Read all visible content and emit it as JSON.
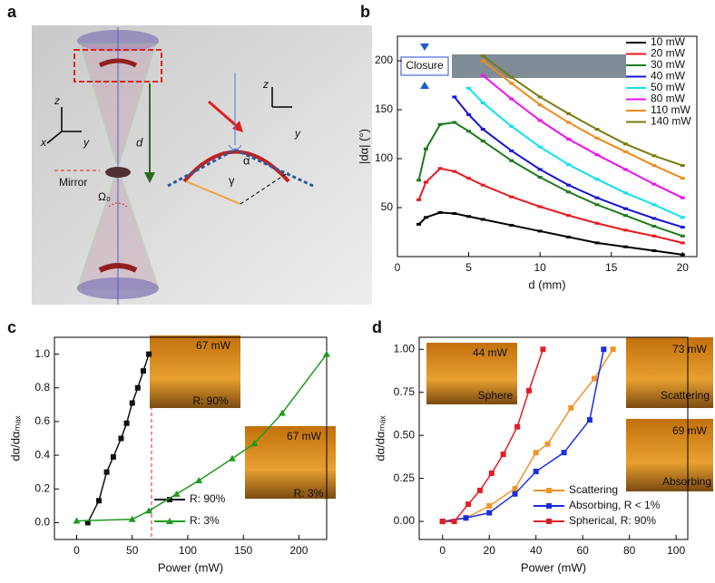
{
  "diagram": {
    "panel": "a",
    "labels": [
      "z",
      "x",
      "y",
      "d",
      "Mirror",
      "Ω₀",
      "z",
      "y",
      "α",
      "γ"
    ]
  },
  "chart_data": [
    {
      "panel": "b",
      "type": "line",
      "xlabel": "d (mm)",
      "ylabel": "|dα| (°)",
      "xlim": [
        0,
        21
      ],
      "ylim": [
        0,
        225
      ],
      "xticks": [
        0,
        5,
        10,
        15,
        20
      ],
      "yticks": [
        50,
        100,
        150,
        200
      ],
      "legend": "upper right",
      "marker": "tick",
      "insets": [
        [
          "Closure"
        ]
      ],
      "series": [
        {
          "name": "10 mW",
          "color": "#000000",
          "x": [
            1.5,
            2,
            3,
            4,
            5,
            6,
            8,
            10,
            12,
            14,
            16,
            18,
            20
          ],
          "values": [
            33,
            40,
            45,
            44,
            41,
            38,
            32,
            26,
            20,
            14,
            10,
            6,
            2
          ]
        },
        {
          "name": "20 mW",
          "color": "#e8191c",
          "x": [
            1.5,
            2,
            3,
            4,
            5,
            6,
            8,
            10,
            12,
            14,
            16,
            18,
            20
          ],
          "values": [
            58,
            76,
            90,
            87,
            80,
            73,
            61,
            51,
            42,
            34,
            27,
            21,
            14
          ]
        },
        {
          "name": "30 mW",
          "color": "#1e7b1e",
          "x": [
            1.5,
            2,
            3,
            4,
            5,
            6,
            8,
            10,
            12,
            14,
            16,
            18,
            20
          ],
          "values": [
            78,
            110,
            135,
            137,
            128,
            118,
            98,
            81,
            66,
            53,
            42,
            31,
            21
          ]
        },
        {
          "name": "40 mW",
          "color": "#1515d8",
          "x": [
            4,
            5,
            6,
            8,
            10,
            12,
            14,
            16,
            18,
            20
          ],
          "values": [
            163,
            145,
            130,
            108,
            89,
            73,
            60,
            49,
            39,
            30
          ]
        },
        {
          "name": "50 mW",
          "color": "#10e0f0",
          "x": [
            5,
            6,
            8,
            10,
            12,
            14,
            16,
            18,
            20
          ],
          "values": [
            172,
            157,
            133,
            112,
            94,
            79,
            65,
            53,
            40
          ]
        },
        {
          "name": "80 mW",
          "color": "#ee12ee",
          "x": [
            6,
            8,
            10,
            12,
            14,
            16,
            18,
            20
          ],
          "values": [
            185,
            161,
            139,
            120,
            104,
            89,
            74,
            60
          ]
        },
        {
          "name": "110 mW",
          "color": "#f08a1c",
          "x": [
            6,
            8,
            10,
            12,
            14,
            16,
            18,
            20
          ],
          "values": [
            200,
            177,
            155,
            137,
            121,
            107,
            93,
            80
          ]
        },
        {
          "name": "140 mW",
          "color": "#7a7a10",
          "x": [
            6,
            8,
            10,
            12,
            14,
            16,
            18,
            20
          ],
          "values": [
            205,
            183,
            163,
            146,
            130,
            115,
            103,
            93
          ]
        }
      ]
    },
    {
      "panel": "c",
      "type": "line",
      "xlabel": "Power (mW)",
      "ylabel": "dα/dαₘₐₓ",
      "xlim": [
        -20,
        225
      ],
      "ylim": [
        -0.1,
        1.1
      ],
      "xticks": [
        0,
        50,
        100,
        150,
        200
      ],
      "yticks": [
        {
          "value": 0,
          "label": "0.0"
        },
        0.2,
        0.4,
        0.6,
        0.8,
        {
          "value": 1,
          "label": "1.0"
        }
      ],
      "legend": "lower right",
      "insets": [
        [
          "67 mW",
          "R: 90%"
        ],
        [
          "67 mW",
          "R: 3%"
        ]
      ],
      "series": [
        {
          "name": "R: 90%",
          "color": "#111111",
          "marker": "square",
          "x": [
            10,
            20,
            27,
            33,
            40,
            45,
            50,
            55,
            60,
            65
          ],
          "values": [
            0,
            0.13,
            0.3,
            0.39,
            0.5,
            0.59,
            0.71,
            0.8,
            0.9,
            1.0
          ]
        },
        {
          "name": "R: 3%",
          "color": "#1f9a1f",
          "marker": "triangle",
          "x": [
            0,
            50,
            65,
            90,
            110,
            140,
            160,
            185,
            225
          ],
          "values": [
            0.01,
            0.02,
            0.07,
            0.17,
            0.25,
            0.38,
            0.47,
            0.65,
            1.0
          ]
        }
      ]
    },
    {
      "panel": "d",
      "type": "line",
      "xlabel": "Power (mW)",
      "ylabel": "dα/dαₘₐₓ",
      "xlim": [
        -10,
        105
      ],
      "ylim": [
        -0.105,
        1.07
      ],
      "xticks": [
        0,
        20,
        40,
        60,
        80,
        100
      ],
      "yticks": [
        {
          "value": 0,
          "label": "0.00"
        },
        0.25,
        {
          "value": 0.5,
          "label": "0.50"
        },
        0.75,
        {
          "value": 1,
          "label": "1.00"
        }
      ],
      "legend": "lower right",
      "insets": [
        [
          "44 mW",
          "Sphere"
        ],
        [
          "73 mW",
          "Scattering"
        ],
        [
          "69 mW",
          "Absorbing"
        ]
      ],
      "series": [
        {
          "name": "Scattering",
          "color": "#f0942a",
          "marker": "square",
          "x": [
            0,
            10,
            20,
            31,
            40,
            45,
            55,
            65,
            73
          ],
          "values": [
            0,
            0.02,
            0.09,
            0.19,
            0.4,
            0.45,
            0.66,
            0.83,
            1.0
          ]
        },
        {
          "name": "Absorbing, R < 1%",
          "color": "#1a2ee0",
          "marker": "square",
          "x": [
            0,
            10,
            20,
            31,
            40,
            52,
            63,
            69
          ],
          "values": [
            0,
            0.02,
            0.05,
            0.16,
            0.29,
            0.4,
            0.59,
            1.0
          ]
        },
        {
          "name": "Spherical, R: 90%",
          "color": "#e41c24",
          "marker": "square",
          "x": [
            0,
            5,
            11,
            16,
            21,
            26,
            32,
            37,
            43
          ],
          "values": [
            0,
            0,
            0.1,
            0.18,
            0.28,
            0.39,
            0.55,
            0.76,
            1.0
          ]
        }
      ]
    }
  ]
}
